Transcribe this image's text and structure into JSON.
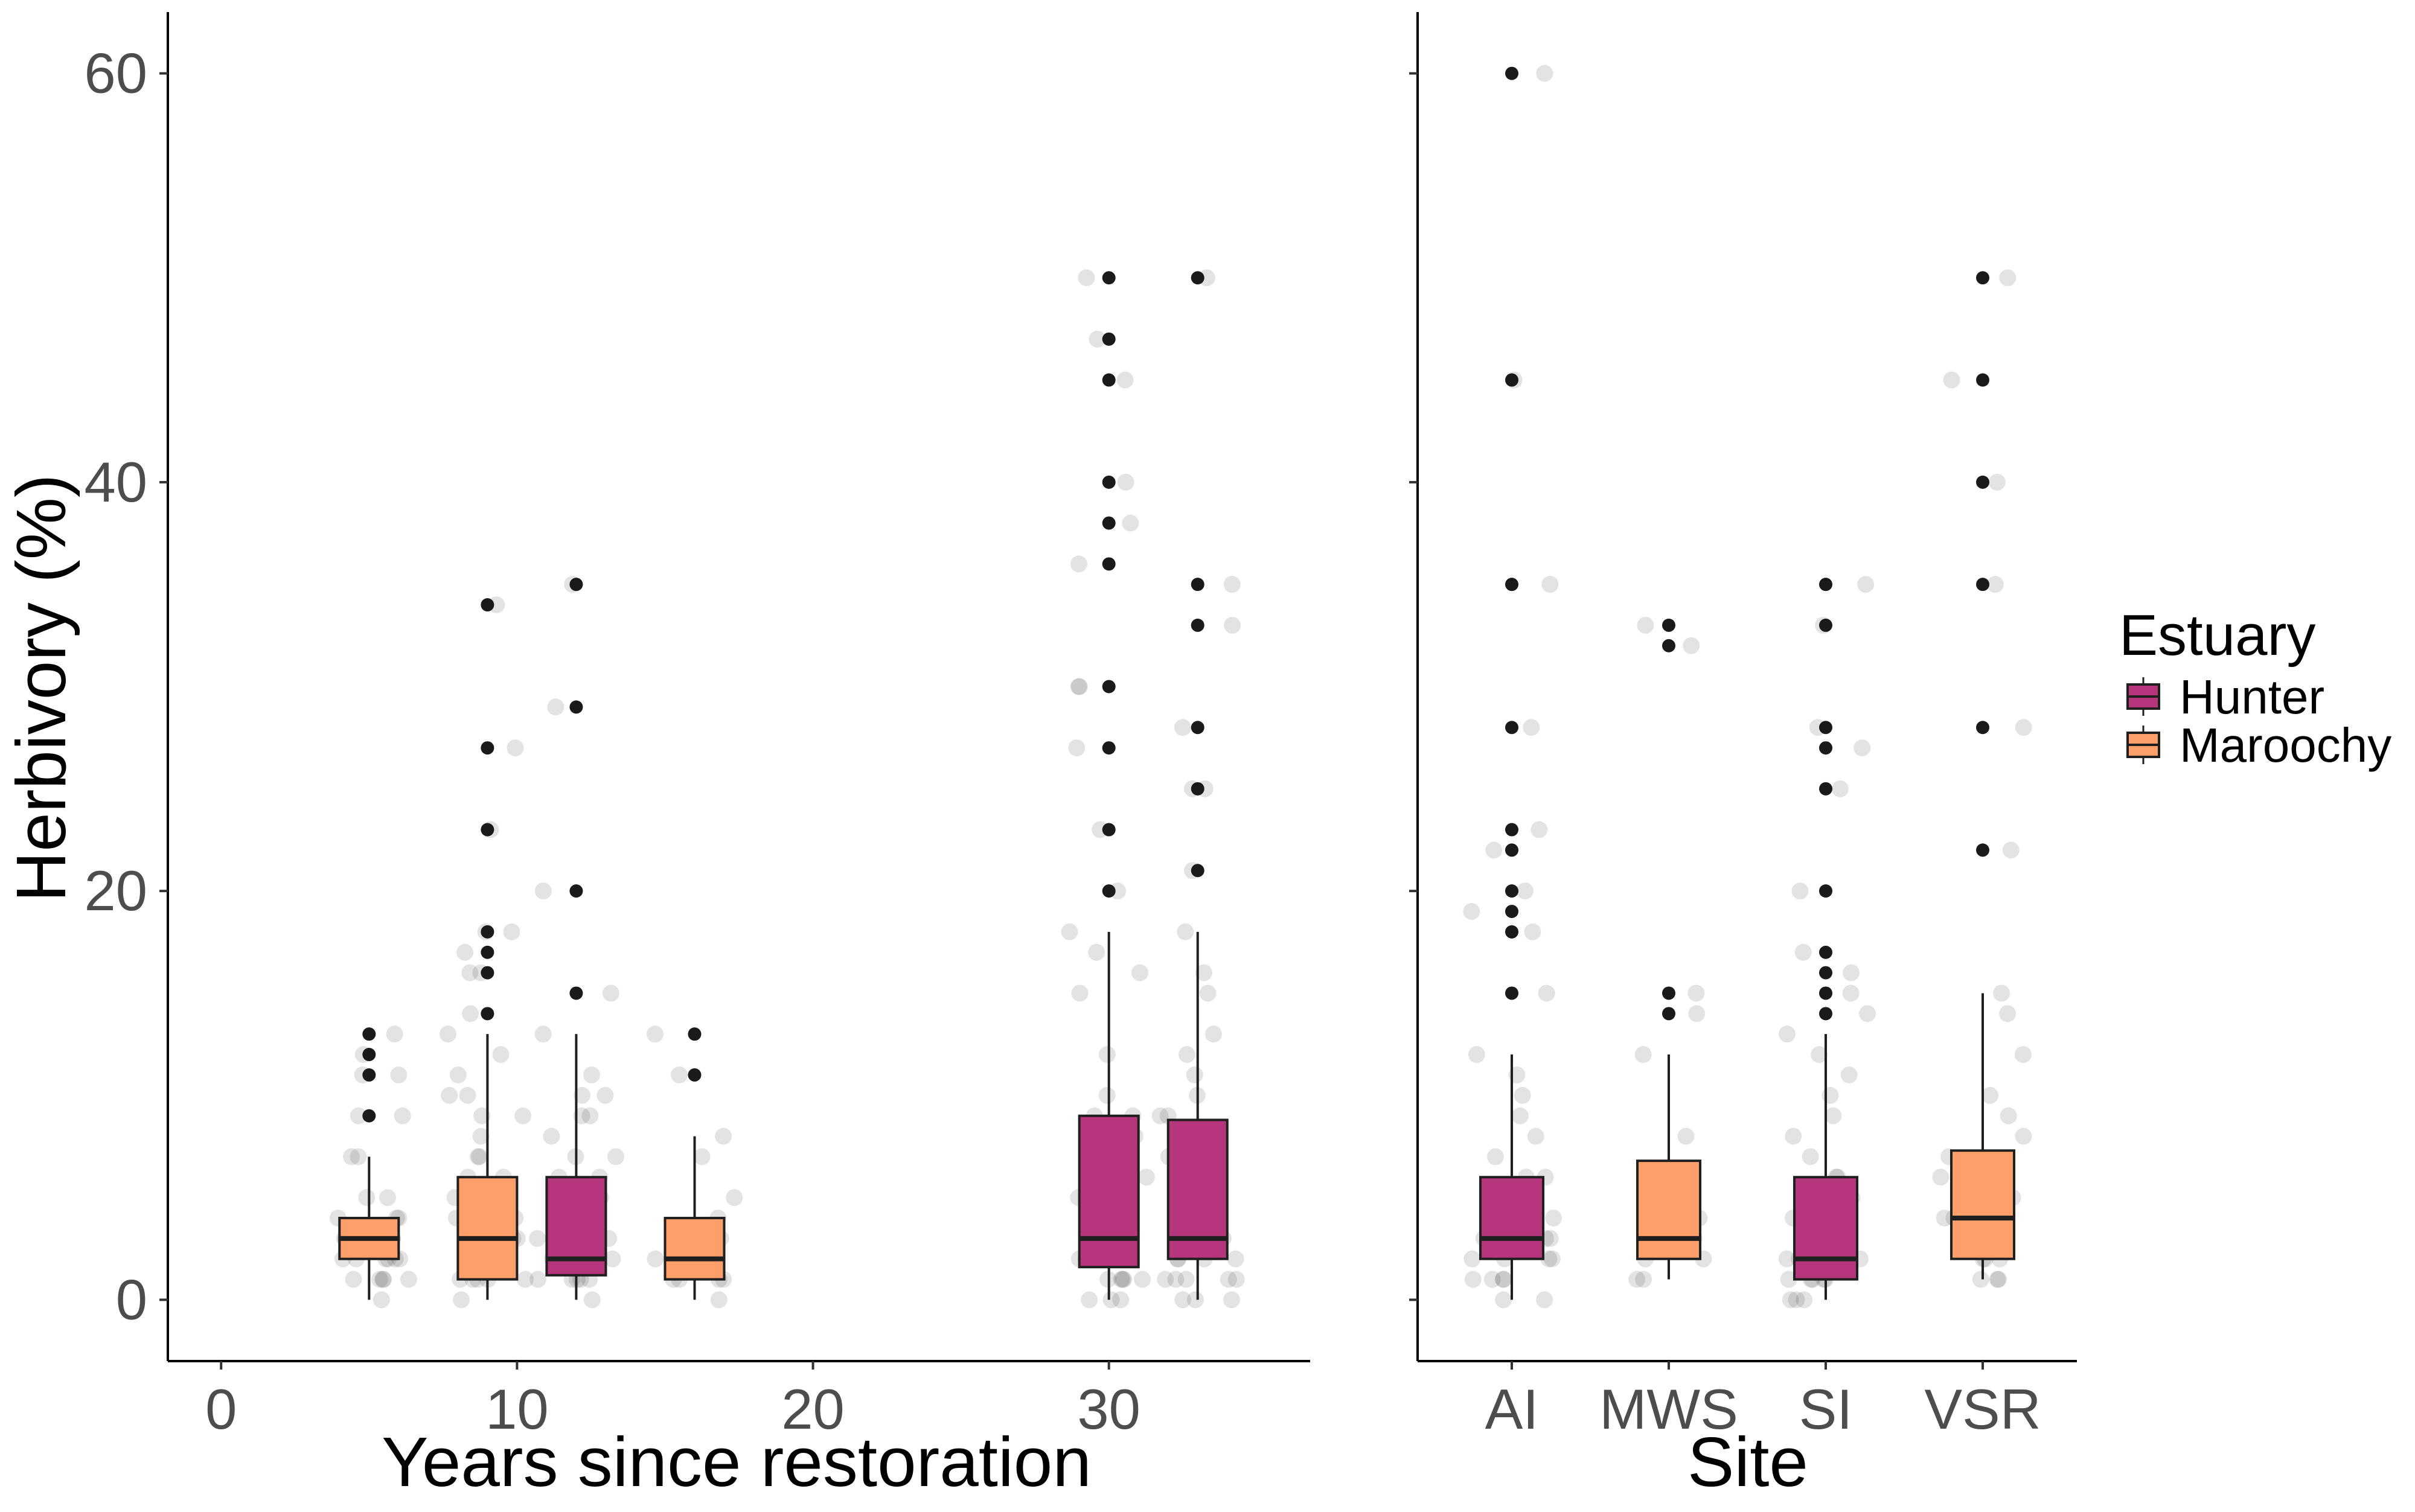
{
  "chart_data": [
    {
      "type": "boxplot",
      "panel": "left",
      "xlabel": "Years since restoration",
      "ylabel": "Herbivory (%)",
      "xlim": [
        -1.8,
        36.8
      ],
      "ylim": [
        -3,
        63
      ],
      "x_ticks": [
        0,
        10,
        20,
        30
      ],
      "y_ticks": [
        0,
        20,
        40,
        60
      ],
      "grid": false,
      "boxes": [
        {
          "x": 5,
          "estuary": "Maroochy",
          "q1": 2,
          "median": 3,
          "q3": 4,
          "whisker_low": 0,
          "whisker_high": 7,
          "outliers": [
            9,
            11,
            12,
            13
          ],
          "points": [
            0,
            1,
            1,
            1,
            1,
            1,
            2,
            2,
            2,
            2,
            2,
            2,
            3,
            3,
            3,
            3,
            3,
            3,
            4,
            4,
            4,
            5,
            5,
            7,
            7,
            9,
            9,
            11,
            11,
            12,
            13
          ]
        },
        {
          "x": 9,
          "estuary": "Maroochy",
          "q1": 1,
          "median": 3,
          "q3": 6,
          "whisker_low": 0,
          "whisker_high": 13,
          "outliers": [
            14,
            16,
            17,
            18,
            23,
            27,
            34
          ],
          "points": [
            0,
            1,
            1,
            1,
            1,
            1,
            2,
            2,
            2,
            2,
            3,
            3,
            3,
            3,
            4,
            4,
            4,
            5,
            5,
            5,
            5,
            6,
            6,
            7,
            7,
            8,
            9,
            9,
            10,
            10,
            11,
            12,
            13,
            14,
            16,
            16,
            17,
            18,
            18,
            23,
            27,
            34
          ]
        },
        {
          "x": 12,
          "estuary": "Hunter",
          "q1": 1.2,
          "median": 2,
          "q3": 6,
          "whisker_low": 0,
          "whisker_high": 13,
          "outliers": [
            15,
            20,
            29,
            35
          ],
          "points": [
            0,
            1,
            1,
            1,
            1,
            1,
            2,
            2,
            2,
            2,
            2,
            3,
            3,
            3,
            3,
            4,
            4,
            5,
            5,
            6,
            6,
            7,
            7,
            8,
            9,
            9,
            10,
            10,
            11,
            13,
            15,
            20,
            29,
            35
          ]
        },
        {
          "x": 16,
          "estuary": "Maroochy",
          "q1": 1,
          "median": 2,
          "q3": 4,
          "whisker_low": 0,
          "whisker_high": 8,
          "outliers": [
            11,
            13
          ],
          "points": [
            0,
            1,
            1,
            1,
            1,
            2,
            2,
            2,
            2,
            3,
            3,
            4,
            5,
            7,
            8,
            11,
            13
          ]
        },
        {
          "x": 30,
          "estuary": "Hunter",
          "q1": 1.6,
          "median": 3,
          "q3": 9,
          "whisker_low": 0,
          "whisker_high": 18,
          "outliers": [
            20,
            23,
            27,
            30,
            36,
            38,
            40,
            45,
            47,
            50
          ],
          "points": [
            0,
            0,
            0,
            1,
            1,
            1,
            1,
            1,
            2,
            2,
            2,
            2,
            3,
            3,
            3,
            3,
            3,
            4,
            4,
            5,
            5,
            6,
            6,
            7,
            8,
            8,
            9,
            9,
            10,
            12,
            15,
            16,
            17,
            18,
            20,
            23,
            27,
            30,
            30,
            36,
            38,
            40,
            45,
            47,
            50
          ]
        },
        {
          "x": 33,
          "estuary": "Hunter",
          "q1": 2,
          "median": 3,
          "q3": 8.8,
          "whisker_low": 0,
          "whisker_high": 18,
          "outliers": [
            21,
            25,
            28,
            33,
            35,
            50
          ],
          "points": [
            0,
            0,
            0,
            1,
            1,
            1,
            1,
            1,
            2,
            2,
            2,
            2,
            3,
            3,
            3,
            3,
            4,
            4,
            5,
            5,
            6,
            6,
            7,
            8,
            9,
            9,
            10,
            11,
            12,
            13,
            15,
            16,
            18,
            21,
            25,
            25,
            28,
            33,
            35,
            50
          ]
        }
      ]
    },
    {
      "type": "boxplot",
      "panel": "right",
      "xlabel": "Site",
      "ylabel": "",
      "categories": [
        "AI",
        "MWS",
        "SI",
        "VSR"
      ],
      "ylim": [
        -3,
        63
      ],
      "y_ticks": [
        0,
        20,
        40,
        60
      ],
      "grid": false,
      "boxes": [
        {
          "category": "AI",
          "estuary": "Hunter",
          "q1": 2,
          "median": 3,
          "q3": 6,
          "whisker_low": 0,
          "whisker_high": 12,
          "outliers": [
            15,
            18,
            19,
            20,
            22,
            23,
            28,
            35,
            45,
            60
          ],
          "points": [
            0,
            0,
            1,
            1,
            1,
            1,
            2,
            2,
            2,
            2,
            3,
            3,
            3,
            3,
            3,
            4,
            4,
            5,
            5,
            6,
            6,
            7,
            8,
            9,
            10,
            11,
            12,
            15,
            18,
            19,
            20,
            22,
            23,
            28,
            35,
            45,
            60
          ]
        },
        {
          "category": "MWS",
          "estuary": "Maroochy",
          "q1": 2,
          "median": 3,
          "q3": 6.8,
          "whisker_low": 1,
          "whisker_high": 12,
          "outliers": [
            14,
            15,
            32,
            33
          ],
          "points": [
            1,
            1,
            2,
            2,
            3,
            3,
            3,
            4,
            5,
            6,
            8,
            12,
            14,
            15,
            32,
            33
          ]
        },
        {
          "category": "SI",
          "estuary": "Hunter",
          "q1": 1,
          "median": 2,
          "q3": 6,
          "whisker_low": 0,
          "whisker_high": 13,
          "outliers": [
            14,
            15,
            16,
            17,
            20,
            25,
            27,
            28,
            33,
            35
          ],
          "points": [
            0,
            0,
            0,
            1,
            1,
            1,
            1,
            1,
            2,
            2,
            2,
            2,
            2,
            3,
            3,
            3,
            4,
            4,
            5,
            5,
            6,
            6,
            7,
            8,
            9,
            10,
            11,
            12,
            13,
            14,
            15,
            16,
            17,
            20,
            25,
            27,
            28,
            33,
            35
          ]
        },
        {
          "category": "VSR",
          "estuary": "Maroochy",
          "q1": 2,
          "median": 4,
          "q3": 7.3,
          "whisker_low": 1,
          "whisker_high": 15,
          "outliers": [
            22,
            28,
            35,
            40,
            45,
            50
          ],
          "points": [
            1,
            1,
            1,
            2,
            2,
            2,
            3,
            3,
            4,
            4,
            4,
            5,
            5,
            6,
            6,
            7,
            8,
            9,
            10,
            12,
            14,
            15,
            22,
            28,
            35,
            40,
            45,
            50
          ]
        }
      ]
    }
  ],
  "legend": {
    "title": "Estuary",
    "placement": "right",
    "items": [
      {
        "label": "Hunter",
        "color": "#b5367a"
      },
      {
        "label": "Maroochy",
        "color": "#fc9f6a"
      }
    ]
  },
  "colors": {
    "Hunter": "#b5367a",
    "Maroochy": "#fc9f6a",
    "outline": "#1f1f1f",
    "points": "#2a2a2a",
    "tick_text": "#4d4d4d"
  }
}
